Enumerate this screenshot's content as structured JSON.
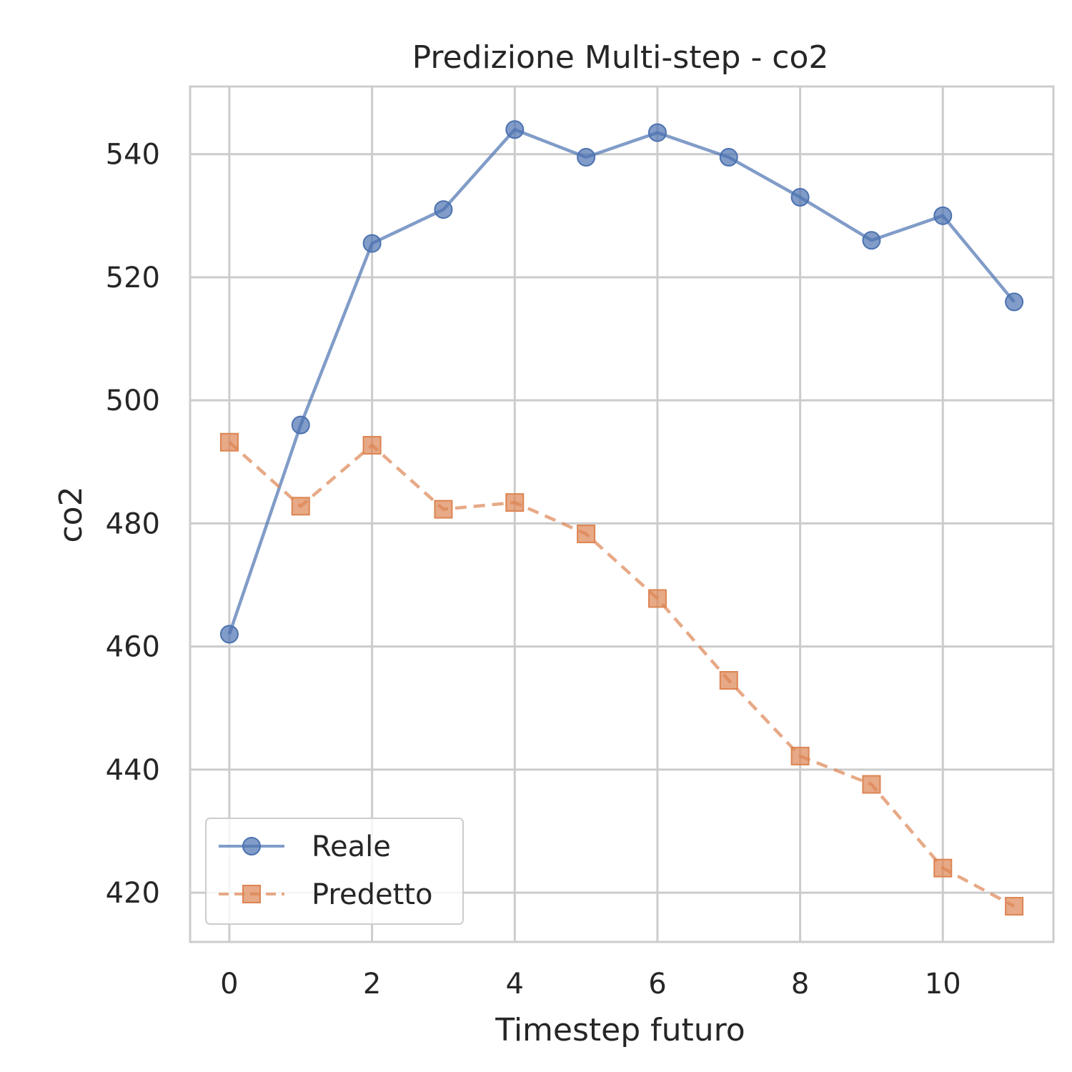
{
  "chart_data": {
    "type": "line",
    "title": "Predizione Multi-step - co2",
    "xlabel": "Timestep futuro",
    "ylabel": "co2",
    "x": [
      0,
      1,
      2,
      3,
      4,
      5,
      6,
      7,
      8,
      9,
      10,
      11
    ],
    "xlim": [
      -0.55,
      11.55
    ],
    "ylim": [
      412,
      551
    ],
    "xticks": [
      0,
      2,
      4,
      6,
      8,
      10
    ],
    "yticks": [
      420,
      440,
      460,
      480,
      500,
      520,
      540
    ],
    "grid": true,
    "legend_position": "lower-left",
    "series": [
      {
        "name": "Reale",
        "color": "#4c72b0",
        "marker": "circle",
        "linestyle": "solid",
        "values": [
          462.0,
          496.0,
          525.5,
          531.0,
          544.0,
          539.5,
          543.5,
          539.5,
          533.0,
          526.0,
          530.0,
          516.0
        ]
      },
      {
        "name": "Predetto",
        "color": "#dd8452",
        "marker": "square",
        "linestyle": "dashed",
        "values": [
          493.2,
          482.8,
          492.7,
          482.3,
          483.4,
          478.3,
          467.8,
          454.5,
          442.2,
          437.6,
          424.0,
          417.8
        ]
      }
    ]
  }
}
